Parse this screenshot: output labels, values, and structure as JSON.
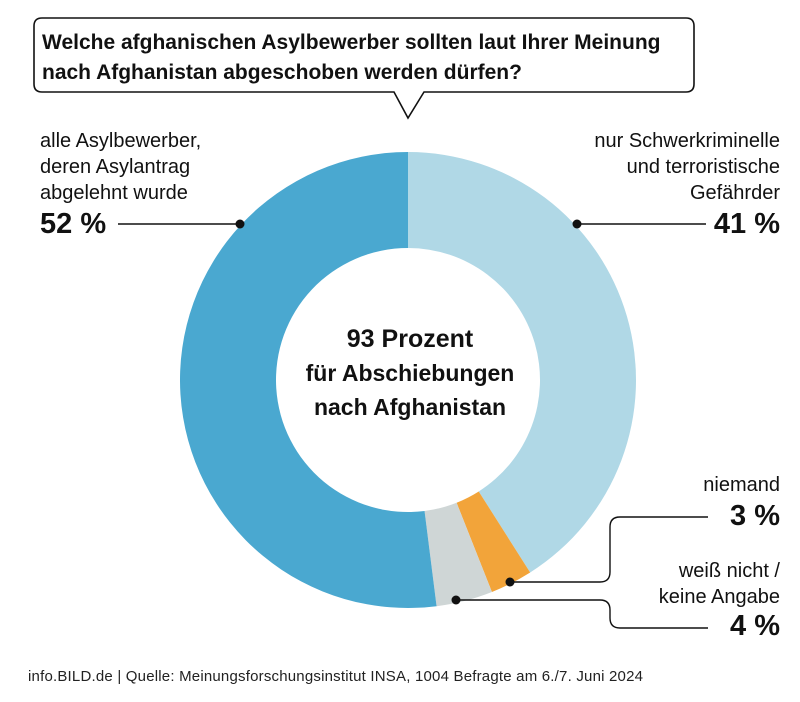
{
  "question": {
    "line1": "Welche afghanischen Asylbewerber sollten laut Ihrer Meinung",
    "line2": "nach Afghanistan abgeschoben werden dürfen?"
  },
  "center": {
    "line1": "93 Prozent",
    "line2": "für Abschiebungen",
    "line3": "nach Afghanistan"
  },
  "labels": {
    "all": {
      "line1": "alle Asylbewerber,",
      "line2": "deren Asylantrag",
      "line3": "abgelehnt wurde",
      "value": "52 %"
    },
    "criminals": {
      "line1": "nur Schwerkriminelle",
      "line2": "und terroristische",
      "line3": "Gefährder",
      "value": "41 %"
    },
    "none": {
      "line1": "niemand",
      "value": "3 %"
    },
    "unknown": {
      "line1": "weiß nicht /",
      "line2": "keine Angabe",
      "value": "4 %"
    }
  },
  "source": "info.BILD.de | Quelle: Meinungsforschungsinstitut INSA, 1004 Befragte am 6./7. Juni 2024",
  "colors": {
    "all": "#4aa8d0",
    "criminals": "#b0d8e6",
    "none": "#f2a43a",
    "unknown": "#cfd6d6"
  },
  "chart_data": {
    "type": "pie",
    "donut": true,
    "title": "Welche afghanischen Asylbewerber sollten laut Ihrer Meinung nach Afghanistan abgeschoben werden dürfen?",
    "categories": [
      "nur Schwerkriminelle und terroristische Gefährder",
      "niemand",
      "weiß nicht / keine Angabe",
      "alle Asylbewerber, deren Asylantrag abgelehnt wurde"
    ],
    "values": [
      41,
      3,
      4,
      52
    ],
    "unit": "%"
  }
}
